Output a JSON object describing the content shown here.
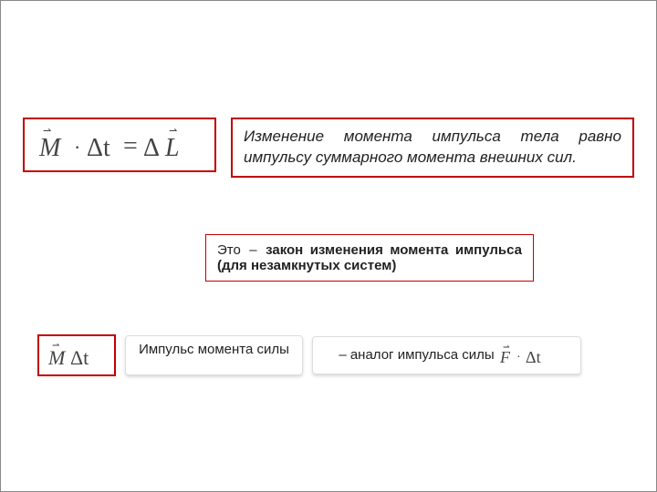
{
  "colors": {
    "border_red": "#c00000",
    "text": "#222222",
    "pill_border": "#dddddd",
    "background": "#ffffff"
  },
  "formula_main": {
    "M": "M",
    "dot": "·",
    "dt": "Δt",
    "eq": "=",
    "dL": "ΔL",
    "vector_glyph": "⇀"
  },
  "definition": "Изменение момента импульса тела равно импульсу суммарного момента внешних сил.",
  "law": {
    "prefix": "Это",
    "dash": "–",
    "bold": "закон изменения момента импульса (для незамкнутых систем)"
  },
  "formula_small": {
    "M": "M",
    "dt": "Δt",
    "vector_glyph": "⇀"
  },
  "pill_left": "Импульс момента силы",
  "pill_right": {
    "text": "– аналог импульса силы",
    "F": "F",
    "dot": "·",
    "dt": "Δt",
    "vector_glyph": "⇀"
  },
  "font_sizes": {
    "definition": 17,
    "law": 15,
    "pill": 15,
    "formula_main": 28,
    "formula_small": 22,
    "formula_inline": 18
  }
}
